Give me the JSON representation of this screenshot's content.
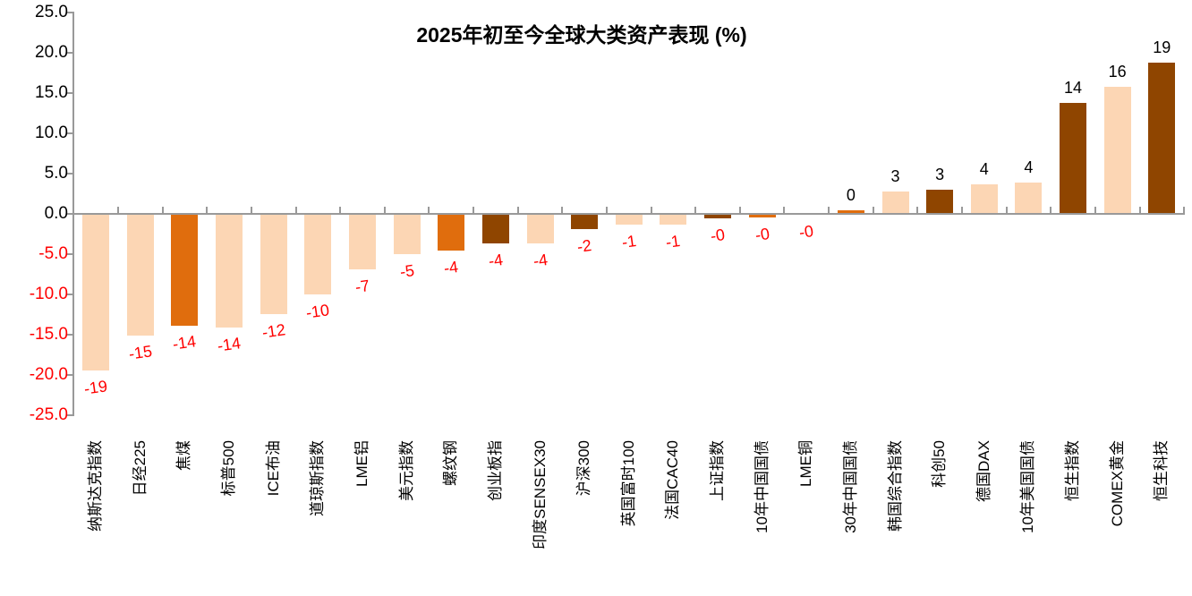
{
  "chart_data": {
    "type": "bar",
    "title": "2025年初至今全球大类资产表现 (%)",
    "categories": [
      "纳斯达克指数",
      "日经225",
      "焦煤",
      "标普500",
      "ICE布油",
      "道琼斯指数",
      "LME铝",
      "美元指数",
      "螺纹钢",
      "创业板指",
      "印度SENSEX30",
      "沪深300",
      "英国富时100",
      "法国CAC40",
      "上证指数",
      "10年中国国债",
      "LME铜",
      "30年中国国债",
      "韩国综合指数",
      "科创50",
      "德国DAX",
      "10年美国国债",
      "恒生指数",
      "COMEX黄金",
      "恒生科技"
    ],
    "values": [
      -19.3,
      -15.0,
      -13.8,
      -14.0,
      -12.3,
      -9.9,
      -6.8,
      -4.9,
      -4.4,
      -3.6,
      -3.5,
      -1.8,
      -1.2,
      -1.2,
      -0.45,
      -0.35,
      -0.05,
      0.4,
      2.8,
      3.0,
      3.7,
      3.9,
      13.8,
      15.8,
      18.8
    ],
    "data_labels": [
      "-19",
      "-15",
      "-14",
      "-14",
      "-12",
      "-10",
      "-7",
      "-5",
      "-4",
      "-4",
      "-4",
      "-2",
      "-1",
      "-1",
      "-0",
      "-0",
      "-0",
      "0",
      "3",
      "3",
      "4",
      "4",
      "14",
      "16",
      "19"
    ],
    "bar_colors": [
      "light",
      "light",
      "orange",
      "light",
      "light",
      "light",
      "light",
      "light",
      "orange",
      "brown",
      "light",
      "brown",
      "light",
      "light",
      "brown",
      "orange",
      "orange",
      "orange",
      "light",
      "brown",
      "light",
      "light",
      "brown",
      "light",
      "brown"
    ],
    "palette": {
      "light": "#FCD6B4",
      "orange": "#E06D0D",
      "brown": "#8F4500"
    },
    "label_color_positive": "#000000",
    "label_color_negative": "#FF0000",
    "axis_color": "#999999",
    "xlabel": "",
    "ylabel": "",
    "y_axis": {
      "tick_labels": [
        "25.0",
        "20.0",
        "15.0",
        "10.0",
        "5.0",
        "0.0",
        "-5.0",
        "-10.0",
        "-15.0",
        "-20.0",
        "-25.0"
      ],
      "min": -25.0,
      "max": 25.0,
      "step": 5.0
    },
    "grid": "off",
    "legend": "none"
  }
}
